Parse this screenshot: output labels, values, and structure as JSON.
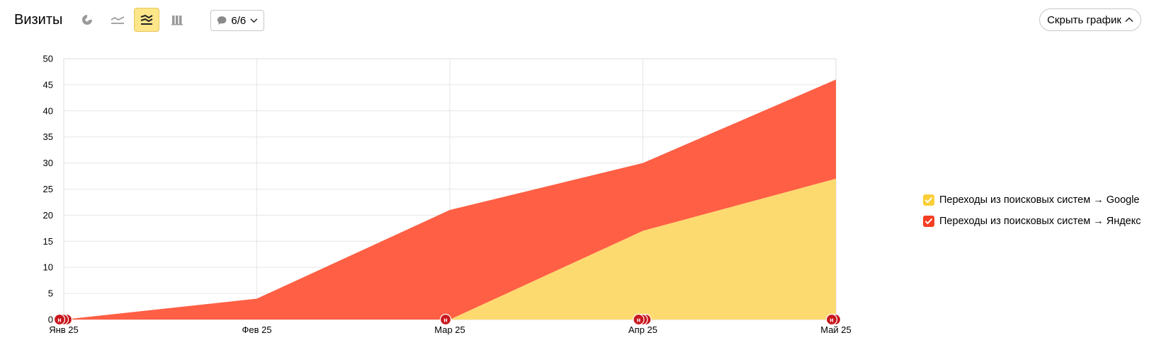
{
  "header": {
    "title": "Визиты",
    "comments_count": "6/6",
    "hide_chart_label": "Скрыть график"
  },
  "toolbar": {
    "icons": [
      "pie-chart-icon",
      "line-chart-icon",
      "stacked-area-icon",
      "bar-chart-icon",
      "comment-icon",
      "chevron-down-icon",
      "chevron-up-icon"
    ],
    "active": "stacked-area-icon"
  },
  "colors": {
    "google": "#fdd868",
    "yandex": "#ff5a3e",
    "marker": "#c8171d",
    "active_bg": "#fde68a"
  },
  "chart_data": {
    "type": "area",
    "stacked": true,
    "categories": [
      "Янв 25",
      "Фев 25",
      "Мар 25",
      "Апр 25",
      "Май 25"
    ],
    "series": [
      {
        "name": "Переходы из поисковых систем → Google",
        "values": [
          0,
          0,
          0,
          17,
          27
        ]
      },
      {
        "name": "Переходы из поисковых систем → Яндекс",
        "values": [
          0,
          4,
          21,
          13,
          19
        ]
      }
    ],
    "yticks": [
      0,
      5,
      10,
      15,
      20,
      25,
      30,
      35,
      40,
      45,
      50
    ],
    "ylim": [
      0,
      50
    ],
    "grid": true,
    "legend_position": "right",
    "annotations": [
      {
        "category": "Янв 25",
        "count": 3,
        "label": "н"
      },
      {
        "category": "Мар 25",
        "count": 1,
        "label": "н"
      },
      {
        "category": "Апр 25",
        "count": 3,
        "label": "н"
      },
      {
        "category": "Май 25",
        "count": 2,
        "label": "н"
      }
    ]
  }
}
